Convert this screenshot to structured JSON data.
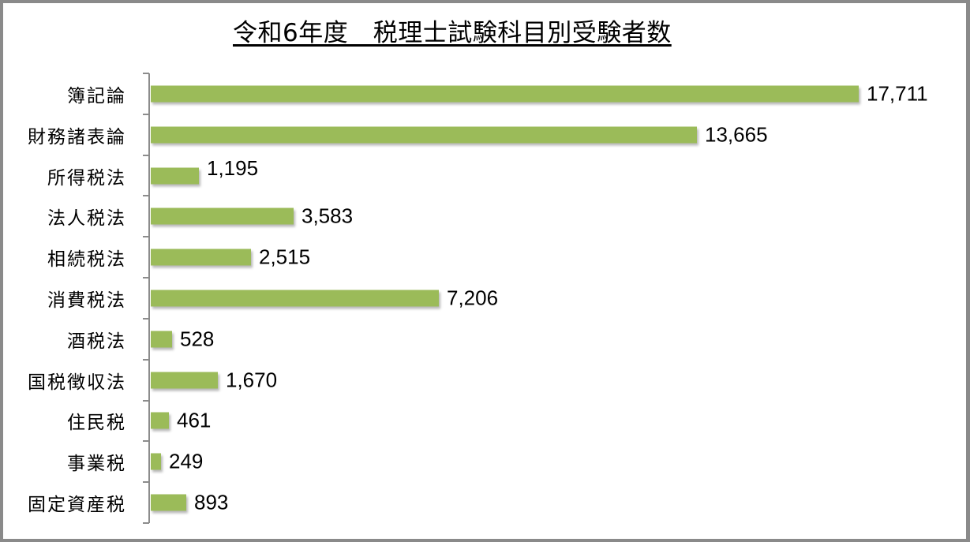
{
  "chart_data": {
    "type": "bar",
    "orientation": "horizontal",
    "title": "令和6年度　税理士試験科目別受験者数",
    "xlabel": "",
    "ylabel": "",
    "categories": [
      "簿記論",
      "財務諸表論",
      "所得税法",
      "法人税法",
      "相続税法",
      "消費税法",
      "酒税法",
      "国税徴収法",
      "住民税",
      "事業税",
      "固定資産税"
    ],
    "values": [
      17711,
      13665,
      1195,
      3583,
      2515,
      7206,
      528,
      1670,
      461,
      249,
      893
    ],
    "value_labels": [
      "17,711",
      "13,665",
      "1,195",
      "3,583",
      "2,515",
      "7,206",
      "528",
      "1,670",
      "461",
      "249",
      "893"
    ],
    "xlim": [
      0,
      17711
    ],
    "grid": false,
    "legend": null,
    "bar_color": "#9bbb59",
    "data_labels": true
  },
  "colors": {
    "bar": "#9bbb59",
    "frame_border": "#8a8a8a",
    "axis": "#8c8c8c",
    "text": "#000000"
  }
}
